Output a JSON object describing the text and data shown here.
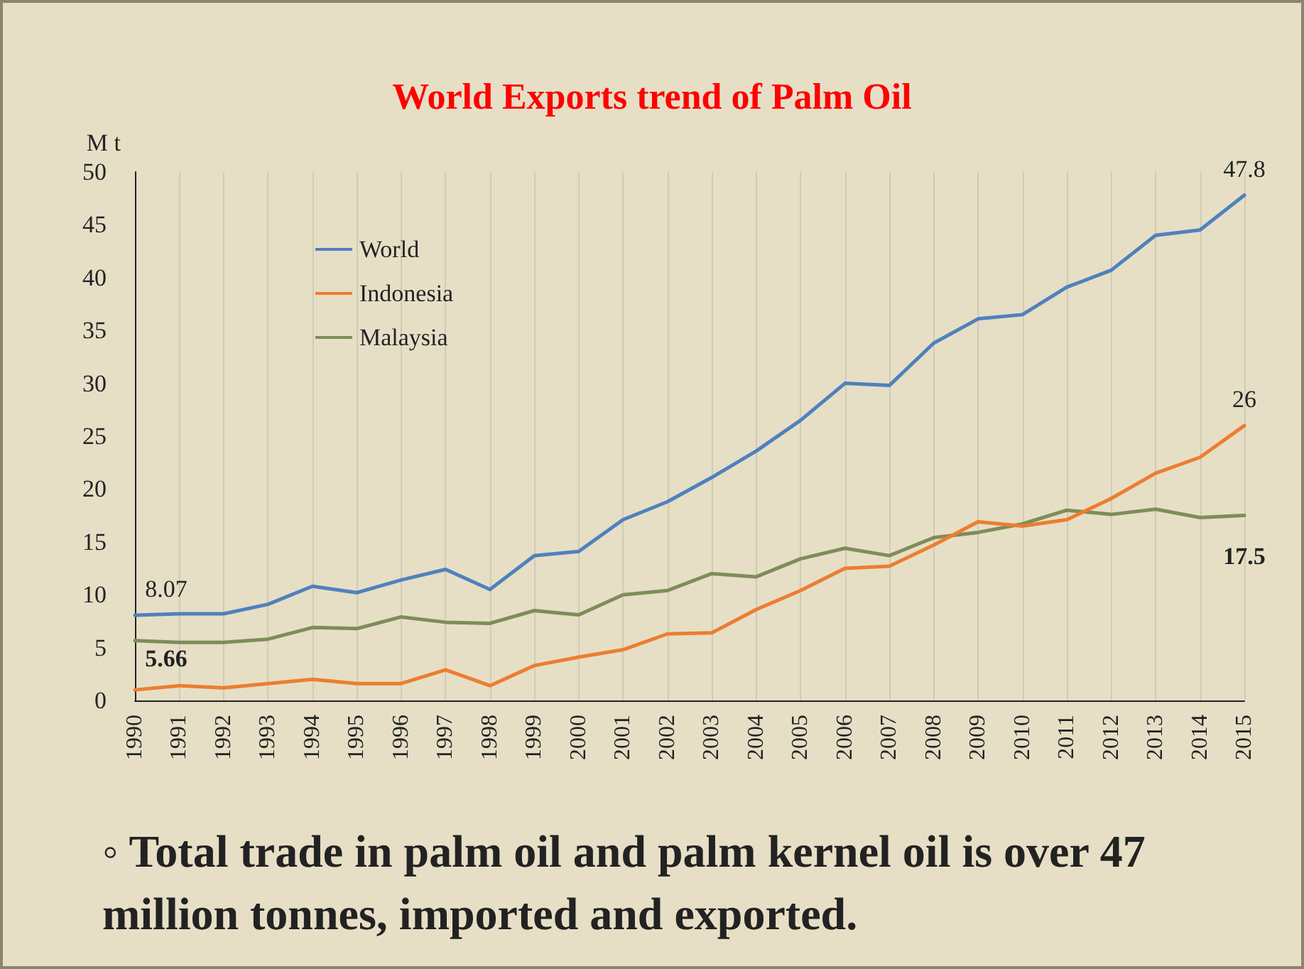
{
  "chart_data": {
    "type": "line",
    "title": "World Exports trend of Palm Oil",
    "ylabel": "M t",
    "categories": [
      "1990",
      "1991",
      "1992",
      "1993",
      "1994",
      "1995",
      "1996",
      "1997",
      "1998",
      "1999",
      "2000",
      "2001",
      "2002",
      "2003",
      "2004",
      "2005",
      "2006",
      "2007",
      "2008",
      "2009",
      "2010",
      "2011",
      "2012",
      "2013",
      "2014",
      "2015"
    ],
    "series": [
      {
        "name": "World",
        "color": "#4f81bd",
        "values": [
          8.07,
          8.2,
          8.2,
          9.1,
          10.8,
          10.2,
          11.4,
          12.4,
          10.5,
          13.7,
          14.1,
          17.1,
          18.8,
          21.1,
          23.6,
          26.5,
          30.0,
          29.8,
          33.8,
          36.1,
          36.5,
          39.1,
          40.7,
          44.0,
          44.5,
          47.8
        ],
        "value_labels": [
          "8.07",
          null,
          null,
          null,
          null,
          null,
          null,
          null,
          null,
          null,
          null,
          null,
          null,
          null,
          null,
          null,
          null,
          null,
          null,
          null,
          null,
          null,
          null,
          null,
          null,
          "47.8"
        ]
      },
      {
        "name": "Indonesia",
        "color": "#ed7d31",
        "values": [
          1.0,
          1.4,
          1.2,
          1.6,
          2.0,
          1.6,
          1.6,
          2.9,
          1.4,
          3.3,
          4.1,
          4.8,
          6.3,
          6.4,
          8.6,
          10.4,
          12.5,
          12.7,
          14.7,
          16.9,
          16.5,
          17.1,
          19.1,
          21.5,
          23.0,
          26
        ],
        "value_labels": [
          null,
          null,
          null,
          null,
          null,
          null,
          null,
          null,
          null,
          null,
          null,
          null,
          null,
          null,
          null,
          null,
          null,
          null,
          null,
          null,
          null,
          null,
          null,
          null,
          null,
          "26"
        ]
      },
      {
        "name": "Malaysia",
        "color": "#7f8c5a",
        "values": [
          5.66,
          5.5,
          5.5,
          5.8,
          6.9,
          6.8,
          7.9,
          7.4,
          7.3,
          8.5,
          8.1,
          10.0,
          10.4,
          12.0,
          11.7,
          13.4,
          14.4,
          13.7,
          15.4,
          15.9,
          16.7,
          18.0,
          17.6,
          18.1,
          17.3,
          17.5
        ],
        "value_labels": [
          "5.66",
          null,
          null,
          null,
          null,
          null,
          null,
          null,
          null,
          null,
          null,
          null,
          null,
          null,
          null,
          null,
          null,
          null,
          null,
          null,
          null,
          null,
          null,
          null,
          null,
          "17.5"
        ]
      }
    ],
    "ylim": [
      0,
      50
    ],
    "yticks": [
      0,
      5,
      10,
      15,
      20,
      25,
      30,
      35,
      40,
      45,
      50
    ],
    "grid": "x",
    "legend": "top left",
    "marker": "none",
    "line_style": "solid",
    "annotations": [
      "◦ Total trade in palm oil and palm kernel oil is over 47 million tonnes, imported and exported."
    ]
  }
}
